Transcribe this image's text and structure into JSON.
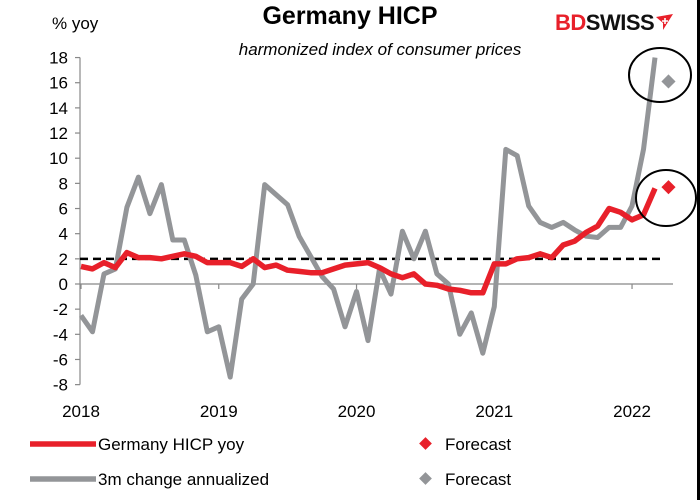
{
  "chart_data": {
    "type": "line",
    "title": "Germany HICP",
    "subtitle": "harmonized index of consumer prices",
    "ylabel": "% yoy",
    "ylim": [
      -8,
      18
    ],
    "yticks": [
      -8,
      -6,
      -4,
      -2,
      0,
      2,
      4,
      6,
      8,
      10,
      12,
      14,
      16,
      18
    ],
    "xticks": [
      "2018",
      "2019",
      "2020",
      "2021",
      "2022"
    ],
    "x_start": "2018-01",
    "x_end": "2022-03",
    "reference_line": {
      "value": 2,
      "style": "dashed",
      "color": "#000000"
    },
    "series": [
      {
        "name": "Germany HICP yoy",
        "color": "#e8202a",
        "values": [
          1.4,
          1.2,
          1.7,
          1.3,
          2.5,
          2.1,
          2.1,
          2.0,
          2.2,
          2.4,
          2.2,
          1.7,
          1.7,
          1.7,
          1.4,
          2.0,
          1.3,
          1.5,
          1.1,
          1.0,
          0.9,
          0.9,
          1.2,
          1.5,
          1.6,
          1.7,
          1.3,
          0.8,
          0.5,
          0.8,
          0.0,
          -0.1,
          -0.4,
          -0.5,
          -0.7,
          -0.7,
          1.6,
          1.6,
          2.0,
          2.1,
          2.4,
          2.1,
          3.1,
          3.4,
          4.1,
          4.6,
          6.0,
          5.7,
          5.1,
          5.5,
          7.6
        ],
        "forecast": {
          "name": "Forecast",
          "period": "2022-04",
          "value": 7.7
        }
      },
      {
        "name": "3m change annualized",
        "color": "#939598",
        "values": [
          -2.5,
          -3.8,
          0.8,
          1.2,
          6.1,
          8.5,
          5.6,
          7.9,
          3.5,
          3.5,
          0.7,
          -3.8,
          -3.4,
          -7.4,
          -1.2,
          0.0,
          7.9,
          7.1,
          6.3,
          3.8,
          2.2,
          0.6,
          -0.4,
          -3.4,
          -0.6,
          -4.5,
          1.2,
          -0.8,
          4.2,
          2.0,
          4.2,
          0.8,
          0.0,
          -4.0,
          -2.3,
          -5.5,
          -1.8,
          10.7,
          10.2,
          6.2,
          4.9,
          4.5,
          4.9,
          4.3,
          3.8,
          3.7,
          4.5,
          4.5,
          6.2,
          10.7,
          18.0
        ],
        "forecast": {
          "name": "Forecast",
          "period": "2022-04",
          "value": 16.1
        }
      }
    ],
    "annotations": [
      "circle around latest values and forecasts"
    ],
    "grid": false,
    "legend": "bottom"
  },
  "logo": {
    "part1": "BD",
    "part2": "SWISS",
    "colors": {
      "bd": "#e8202a",
      "swiss": "#111111"
    }
  }
}
